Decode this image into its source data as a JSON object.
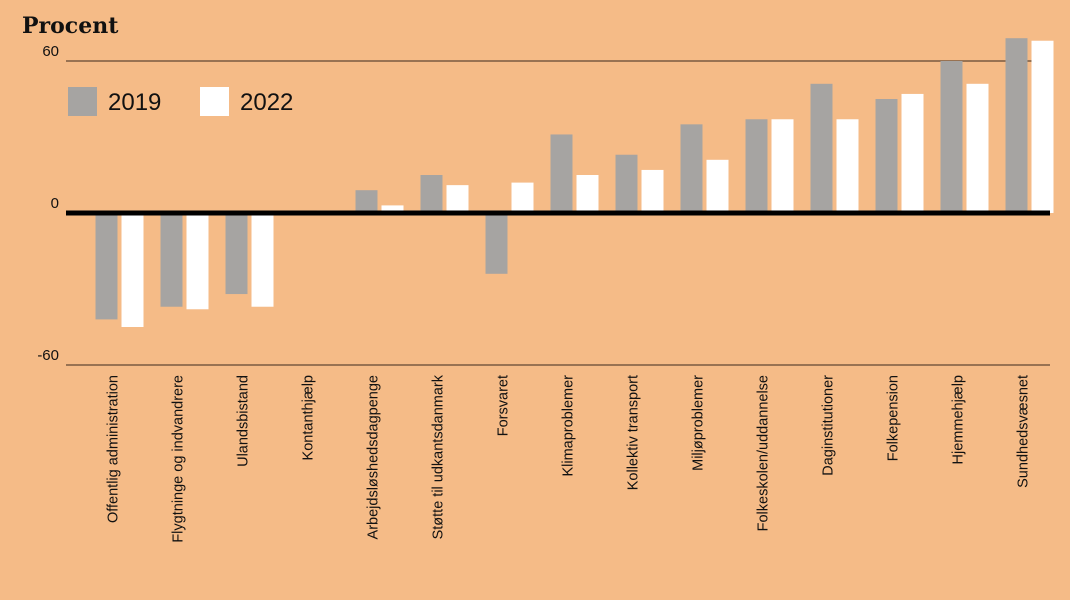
{
  "chart_data": {
    "type": "bar",
    "title": "Procent",
    "xlabel": "",
    "ylabel": "Procent",
    "ylim": [
      -60,
      60
    ],
    "yticks": [
      {
        "value": 60,
        "label": "60"
      },
      {
        "value": 0,
        "label": "0"
      },
      {
        "value": -60,
        "label": "-60"
      }
    ],
    "grid": true,
    "legend_position": "top-left",
    "categories": [
      "Offentlig administration",
      "Flygtninge og indvandrere",
      "Ulandsbistand",
      "Kontanthjælp",
      "Arbejdsløshedsdagpenge",
      "Støtte til udkantsdanmark",
      "Forsvaret",
      "Klimaproblemer",
      "Kollektiv transport",
      "Miljøproblemer",
      "Folkeskolen/uddannelse",
      "Daginstitutioner",
      "Folkepension",
      "Hjemmehjælp",
      "Sundhedsvæsnet"
    ],
    "series": [
      {
        "name": "2019",
        "color": "#a6a4a2",
        "values": [
          -42,
          -37,
          -32,
          0,
          9,
          15,
          -24,
          31,
          23,
          35,
          37,
          51,
          45,
          60,
          69
        ]
      },
      {
        "name": "2022",
        "color": "#ffffff",
        "values": [
          -45,
          -38,
          -37,
          1,
          3,
          11,
          12,
          15,
          17,
          21,
          37,
          37,
          47,
          51,
          68
        ]
      }
    ]
  }
}
